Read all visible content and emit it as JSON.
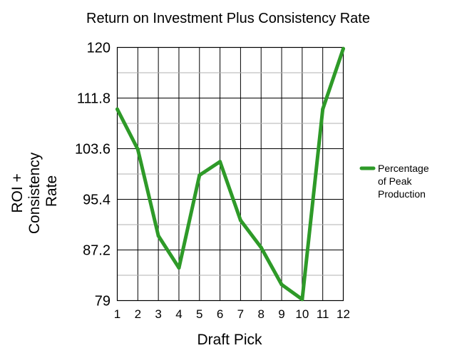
{
  "chart_data": {
    "type": "line",
    "title": "Return on Investment Plus Consistency Rate",
    "xlabel": "Draft Pick",
    "ylabel_lines": [
      "ROI +",
      "Consistency",
      "Rate"
    ],
    "categories": [
      "1",
      "2",
      "3",
      "4",
      "5",
      "6",
      "7",
      "8",
      "9",
      "10",
      "11",
      "12"
    ],
    "ylim": [
      79,
      120
    ],
    "yticks": [
      "120",
      "111.8",
      "103.6",
      "95.4",
      "87.2",
      "79"
    ],
    "grid": true,
    "legend_position": "right",
    "series": [
      {
        "name_lines": [
          "Percentage",
          "of Peak",
          "Production"
        ],
        "color": "#2e9a28",
        "values": [
          110,
          103.5,
          89.5,
          84.3,
          99.3,
          101.5,
          92,
          87.6,
          81.6,
          79.2,
          110,
          119.8
        ]
      }
    ]
  }
}
